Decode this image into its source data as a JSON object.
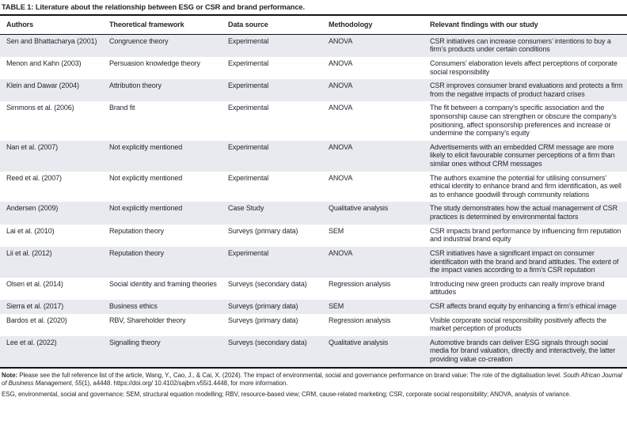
{
  "table": {
    "title": "TABLE 1: Literature about the relationship between ESG or CSR and brand performance.",
    "columns": [
      "Authors",
      "Theoretical framework",
      "Data source",
      "Methodology",
      "Relevant findings with our study"
    ],
    "rows": [
      {
        "authors": "Sen and Bhattacharya (2001)",
        "framework": "Congruence theory",
        "data_source": "Experimental",
        "methodology": "ANOVA",
        "findings": "CSR initiatives can increase consumers’ intentions to buy a firm’s products under certain conditions"
      },
      {
        "authors": "Menon and Kahn (2003)",
        "framework": "Persuasion knowledge theory",
        "data_source": "Experimental",
        "methodology": "ANOVA",
        "findings": "Consumers’ elaboration levels affect perceptions of corporate social responsibility"
      },
      {
        "authors": "Klein and Dawar (2004)",
        "framework": "Attribution theory",
        "data_source": "Experimental",
        "methodology": "ANOVA",
        "findings": "CSR improves consumer brand evaluations and protects a firm from the negative impacts of product hazard crises"
      },
      {
        "authors": "Simmons et al. (2006)",
        "framework": "Brand fit",
        "data_source": "Experimental",
        "methodology": "ANOVA",
        "findings": "The fit between a company’s specific association and the sponsorship cause can strengthen or obscure the company’s positioning, affect sponsorship preferences and increase or undermine the company’s equity"
      },
      {
        "authors": "Nan et al. (2007)",
        "framework": "Not explicitly mentioned",
        "data_source": "Experimental",
        "methodology": "ANOVA",
        "findings": "Advertisements with an embedded CRM message are more likely to elicit favourable consumer perceptions of a firm than similar ones without CRM messages"
      },
      {
        "authors": "Reed et al. (2007)",
        "framework": "Not explicitly mentioned",
        "data_source": "Experimental",
        "methodology": "ANOVA",
        "findings": "The authors examine the potential for utilising consumers’ ethical identity to enhance brand and firm identification, as well as to enhance goodwill through community relations"
      },
      {
        "authors": "Andersen (2009)",
        "framework": "Not explicitly mentioned",
        "data_source": "Case Study",
        "methodology": "Qualitative analysis",
        "findings": "The study demonstrates how the actual management of CSR practices is determined by environmental factors"
      },
      {
        "authors": "Lai et al. (2010)",
        "framework": "Reputation theory",
        "data_source": "Surveys (primary data)",
        "methodology": "SEM",
        "findings": "CSR impacts brand performance by influencing firm reputation and industrial brand equity"
      },
      {
        "authors": "Lii et al. (2012)",
        "framework": "Reputation theory",
        "data_source": "Experimental",
        "methodology": "ANOVA",
        "findings": "CSR initiatives have a significant impact on consumer identification with the brand and brand attitudes. The extent of the impact varies according to a firm’s CSR reputation"
      },
      {
        "authors": "Olsen et al. (2014)",
        "framework": "Social identity and framing theories",
        "data_source": "Surveys (secondary data)",
        "methodology": "Regression analysis",
        "findings": "Introducing new green products can really improve brand attitudes"
      },
      {
        "authors": "Sierra et al. (2017)",
        "framework": "Business ethics",
        "data_source": "Surveys (primary data)",
        "methodology": "SEM",
        "findings": "CSR affects brand equity by enhancing a firm’s ethical image"
      },
      {
        "authors": "Bardos et al. (2020)",
        "framework": "RBV, Shareholder theory",
        "data_source": "Surveys (primary data)",
        "methodology": "Regression analysis",
        "findings": "Visible corporate social responsibility positively affects the market perception of products"
      },
      {
        "authors": "Lee et al. (2022)",
        "framework": "Signalling theory",
        "data_source": "Surveys (secondary data)",
        "methodology": "Qualitative analysis",
        "findings": "Automotive brands can deliver ESG signals through social media for brand valuation, directly and interactively, the latter providing value co-creation"
      }
    ]
  },
  "note": {
    "label": "Note:",
    "before_italic": " Please see the full reference list of the article, Wang, Y., Cao, J., & Cai, X. (2024). The impact of environmental, social and governance performance on brand value: The role of the digitalisation level. ",
    "italic": "South African Journal of Business Management, 55",
    "after_italic": "(1), a4448. https://doi.org/ 10.4102/sajbm.v55i1.4448, for more information."
  },
  "abbreviations": "ESG, environmental, social and governance; SEM, structural equation modelling; RBV, resource-based view; CRM, cause-related marketing; CSR, corporate social responsibility; ANOVA, analysis of variance.",
  "colors": {
    "row_stripe": "#e8eaef",
    "text": "#23272f",
    "rule": "#141414"
  }
}
